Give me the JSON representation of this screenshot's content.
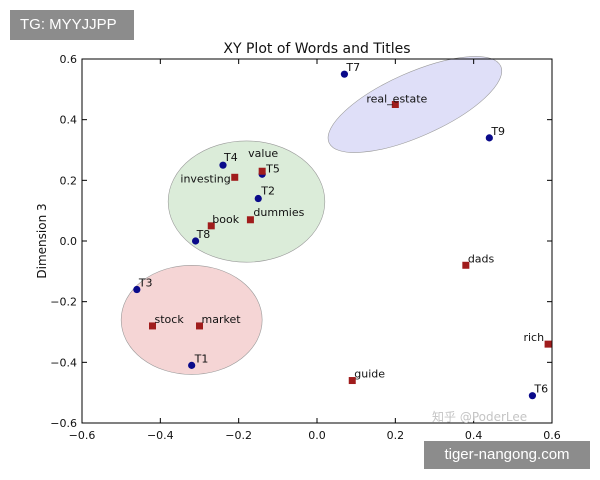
{
  "overlay": {
    "top_tag": "TG: MYYJJPP",
    "bottom_tag": "tiger-nangong.com",
    "watermark": "知乎 @PoderLee"
  },
  "chart_data": {
    "type": "scatter",
    "title": "XY Plot of Words and Titles",
    "xlabel": "",
    "ylabel": "Dimension 3",
    "xlim": [
      -0.6,
      0.6
    ],
    "ylim": [
      -0.6,
      0.6
    ],
    "xticks": [
      "−0.6",
      "−0.4",
      "−0.2",
      "0.0",
      "0.2",
      "0.4",
      "0.6"
    ],
    "yticks": [
      "−0.6",
      "−0.4",
      "−0.2",
      "0.0",
      "0.2",
      "0.4",
      "0.6"
    ],
    "grid": false,
    "series": [
      {
        "marker": "circle",
        "color": "#0a0a8a",
        "points": [
          {
            "label": "T1",
            "x": -0.32,
            "y": -0.41
          },
          {
            "label": "T3",
            "x": -0.46,
            "y": -0.16
          },
          {
            "label": "T4",
            "x": -0.24,
            "y": 0.25
          },
          {
            "label": "T5",
            "x": -0.14,
            "y": 0.22
          },
          {
            "label": "T2",
            "x": -0.15,
            "y": 0.14
          },
          {
            "label": "T8",
            "x": -0.31,
            "y": 0.0
          },
          {
            "label": "T7",
            "x": 0.07,
            "y": 0.55
          },
          {
            "label": "T9",
            "x": 0.44,
            "y": 0.34
          },
          {
            "label": "T6",
            "x": 0.55,
            "y": -0.51
          }
        ]
      },
      {
        "marker": "square",
        "color": "#a01c1c",
        "points": [
          {
            "label": "stock",
            "x": -0.42,
            "y": -0.28
          },
          {
            "label": "market",
            "x": -0.3,
            "y": -0.28
          },
          {
            "label": "investing",
            "x": -0.21,
            "y": 0.21
          },
          {
            "label": "value",
            "x": -0.14,
            "y": 0.23
          },
          {
            "label": "dummies",
            "x": -0.17,
            "y": 0.07
          },
          {
            "label": "book",
            "x": -0.27,
            "y": 0.05
          },
          {
            "label": "real_estate",
            "x": 0.2,
            "y": 0.45
          },
          {
            "label": "dads",
            "x": 0.38,
            "y": -0.08
          },
          {
            "label": "rich",
            "x": 0.59,
            "y": -0.34
          },
          {
            "label": "guide",
            "x": 0.09,
            "y": -0.46
          }
        ]
      }
    ],
    "clusters": [
      {
        "center": [
          -0.32,
          -0.26
        ],
        "radius": [
          0.18,
          0.18
        ],
        "angle": 0,
        "color": "#f4d0d0"
      },
      {
        "center": [
          -0.18,
          0.13
        ],
        "radius": [
          0.2,
          0.2
        ],
        "angle": 0,
        "color": "#d7ead5"
      },
      {
        "center": [
          0.25,
          0.45
        ],
        "radius": [
          0.24,
          0.105
        ],
        "angle": -24,
        "color": "#dcdcf7"
      }
    ]
  }
}
